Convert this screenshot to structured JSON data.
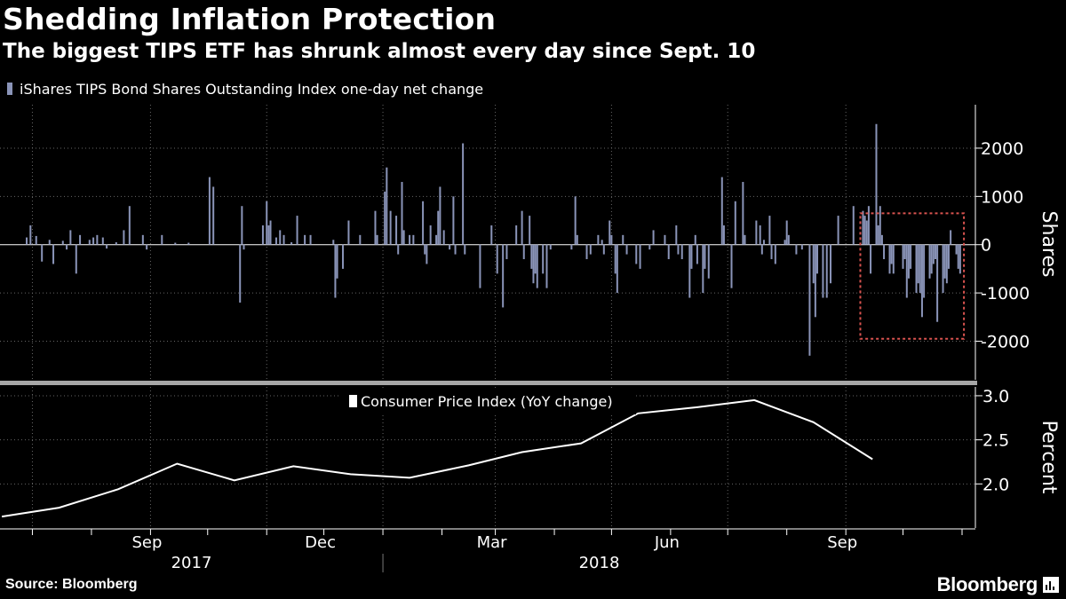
{
  "header": {
    "title": "Shedding Inflation Protection",
    "subtitle": "The biggest TIPS ETF has shrunk almost every day since Sept. 10"
  },
  "footer": {
    "source": "Source: Bloomberg",
    "brand": "Bloomberg"
  },
  "colors": {
    "background": "#000000",
    "bars": "#8a94b8",
    "cpi_line": "#ffffff",
    "highlight_box": "#d9534f",
    "grid": "#666666"
  },
  "chart_data": [
    {
      "type": "bar",
      "legend": "iShares TIPS Bond Shares Outstanding Index one-day net change",
      "legend_placement": "top-left",
      "ylabel": "Shares",
      "yticks": [
        2000,
        1000,
        0,
        -1000,
        -2000
      ],
      "ytick_labels": [
        "2000",
        "1000",
        "0",
        "-1000",
        "-2000"
      ],
      "ylim": [
        -2800,
        2900
      ],
      "grid": true,
      "highlight": {
        "from": "2018-09-10",
        "to": "2018-10-12",
        "ymin": -1950,
        "ymax": 650
      },
      "series": [
        {
          "values": [
            [
              "2017-06-28",
              150
            ],
            [
              "2017-06-30",
              400
            ],
            [
              "2017-07-03",
              180
            ],
            [
              "2017-07-06",
              -350
            ],
            [
              "2017-07-10",
              100
            ],
            [
              "2017-07-12",
              -400
            ],
            [
              "2017-07-17",
              80
            ],
            [
              "2017-07-19",
              -100
            ],
            [
              "2017-07-21",
              300
            ],
            [
              "2017-07-24",
              -600
            ],
            [
              "2017-07-26",
              200
            ],
            [
              "2017-07-31",
              100
            ],
            [
              "2017-08-02",
              150
            ],
            [
              "2017-08-04",
              200
            ],
            [
              "2017-08-07",
              150
            ],
            [
              "2017-08-09",
              -80
            ],
            [
              "2017-08-14",
              50
            ],
            [
              "2017-08-18",
              300
            ],
            [
              "2017-08-21",
              800
            ],
            [
              "2017-08-28",
              200
            ],
            [
              "2017-08-30",
              -100
            ],
            [
              "2017-09-07",
              200
            ],
            [
              "2017-09-14",
              40
            ],
            [
              "2017-09-21",
              40
            ],
            [
              "2017-10-02",
              1400
            ],
            [
              "2017-10-04",
              1200
            ],
            [
              "2017-10-18",
              -1200
            ],
            [
              "2017-10-19",
              800
            ],
            [
              "2017-10-20",
              -100
            ],
            [
              "2017-10-30",
              400
            ],
            [
              "2017-11-01",
              900
            ],
            [
              "2017-11-02",
              400
            ],
            [
              "2017-11-03",
              500
            ],
            [
              "2017-11-06",
              150
            ],
            [
              "2017-11-08",
              300
            ],
            [
              "2017-11-10",
              200
            ],
            [
              "2017-11-14",
              50
            ],
            [
              "2017-11-17",
              600
            ],
            [
              "2017-11-21",
              200
            ],
            [
              "2017-11-24",
              200
            ],
            [
              "2017-12-06",
              100
            ],
            [
              "2017-12-07",
              -1100
            ],
            [
              "2017-12-08",
              -700
            ],
            [
              "2017-12-11",
              -500
            ],
            [
              "2017-12-14",
              500
            ],
            [
              "2017-12-20",
              200
            ],
            [
              "2017-12-28",
              700
            ],
            [
              "2017-12-29",
              200
            ],
            [
              "2018-01-02",
              1100
            ],
            [
              "2018-01-03",
              1600
            ],
            [
              "2018-01-05",
              700
            ],
            [
              "2018-01-08",
              600
            ],
            [
              "2018-01-09",
              -200
            ],
            [
              "2018-01-11",
              1300
            ],
            [
              "2018-01-12",
              300
            ],
            [
              "2018-01-15",
              200
            ],
            [
              "2018-01-17",
              200
            ],
            [
              "2018-01-22",
              900
            ],
            [
              "2018-01-23",
              -200
            ],
            [
              "2018-01-24",
              -400
            ],
            [
              "2018-01-26",
              400
            ],
            [
              "2018-01-29",
              200
            ],
            [
              "2018-01-30",
              700
            ],
            [
              "2018-01-31",
              1200
            ],
            [
              "2018-02-02",
              300
            ],
            [
              "2018-02-05",
              -100
            ],
            [
              "2018-02-07",
              1000
            ],
            [
              "2018-02-08",
              -200
            ],
            [
              "2018-02-12",
              2100
            ],
            [
              "2018-02-13",
              -200
            ],
            [
              "2018-02-21",
              -900
            ],
            [
              "2018-02-27",
              400
            ],
            [
              "2018-03-02",
              -600
            ],
            [
              "2018-03-05",
              -1300
            ],
            [
              "2018-03-07",
              -300
            ],
            [
              "2018-03-12",
              400
            ],
            [
              "2018-03-15",
              700
            ],
            [
              "2018-03-16",
              -300
            ],
            [
              "2018-03-19",
              600
            ],
            [
              "2018-03-20",
              -500
            ],
            [
              "2018-03-21",
              -800
            ],
            [
              "2018-03-22",
              -600
            ],
            [
              "2018-03-23",
              -900
            ],
            [
              "2018-03-26",
              -600
            ],
            [
              "2018-03-28",
              -900
            ],
            [
              "2018-03-30",
              -100
            ],
            [
              "2018-04-10",
              -100
            ],
            [
              "2018-04-12",
              1000
            ],
            [
              "2018-04-13",
              200
            ],
            [
              "2018-04-18",
              -300
            ],
            [
              "2018-04-20",
              -200
            ],
            [
              "2018-04-24",
              200
            ],
            [
              "2018-04-26",
              100
            ],
            [
              "2018-04-27",
              -200
            ],
            [
              "2018-04-30",
              500
            ],
            [
              "2018-05-01",
              200
            ],
            [
              "2018-05-03",
              -600
            ],
            [
              "2018-05-04",
              -1000
            ],
            [
              "2018-05-07",
              200
            ],
            [
              "2018-05-09",
              -200
            ],
            [
              "2018-05-14",
              -400
            ],
            [
              "2018-05-16",
              -500
            ],
            [
              "2018-05-21",
              -100
            ],
            [
              "2018-05-23",
              300
            ],
            [
              "2018-05-29",
              200
            ],
            [
              "2018-05-31",
              -300
            ],
            [
              "2018-06-04",
              400
            ],
            [
              "2018-06-05",
              -200
            ],
            [
              "2018-06-07",
              -300
            ],
            [
              "2018-06-11",
              -1100
            ],
            [
              "2018-06-12",
              -500
            ],
            [
              "2018-06-14",
              200
            ],
            [
              "2018-06-15",
              -400
            ],
            [
              "2018-06-18",
              -1000
            ],
            [
              "2018-06-19",
              -500
            ],
            [
              "2018-06-21",
              -700
            ],
            [
              "2018-06-28",
              1400
            ],
            [
              "2018-06-29",
              400
            ],
            [
              "2018-07-03",
              -900
            ],
            [
              "2018-07-05",
              900
            ],
            [
              "2018-07-09",
              1300
            ],
            [
              "2018-07-10",
              200
            ],
            [
              "2018-07-16",
              500
            ],
            [
              "2018-07-18",
              400
            ],
            [
              "2018-07-19",
              -200
            ],
            [
              "2018-07-20",
              100
            ],
            [
              "2018-07-23",
              600
            ],
            [
              "2018-07-24",
              -300
            ],
            [
              "2018-07-26",
              -400
            ],
            [
              "2018-07-31",
              100
            ],
            [
              "2018-08-01",
              500
            ],
            [
              "2018-08-02",
              200
            ],
            [
              "2018-08-06",
              -200
            ],
            [
              "2018-08-09",
              -100
            ],
            [
              "2018-08-13",
              -2300
            ],
            [
              "2018-08-15",
              -800
            ],
            [
              "2018-08-16",
              -1500
            ],
            [
              "2018-08-17",
              -600
            ],
            [
              "2018-08-20",
              -1100
            ],
            [
              "2018-08-22",
              -1100
            ],
            [
              "2018-08-24",
              -800
            ],
            [
              "2018-08-28",
              600
            ],
            [
              "2018-09-05",
              800
            ],
            [
              "2018-09-10",
              700
            ],
            [
              "2018-09-11",
              600
            ],
            [
              "2018-09-12",
              500
            ],
            [
              "2018-09-13",
              800
            ],
            [
              "2018-09-14",
              -600
            ],
            [
              "2018-09-17",
              2500
            ],
            [
              "2018-09-18",
              400
            ],
            [
              "2018-09-19",
              800
            ],
            [
              "2018-09-20",
              200
            ],
            [
              "2018-09-21",
              -300
            ],
            [
              "2018-09-24",
              -600
            ],
            [
              "2018-09-25",
              -400
            ],
            [
              "2018-09-26",
              -600
            ],
            [
              "2018-10-01",
              -500
            ],
            [
              "2018-10-02",
              -300
            ],
            [
              "2018-10-03",
              -1100
            ],
            [
              "2018-10-04",
              -700
            ],
            [
              "2018-10-05",
              -500
            ],
            [
              "2018-10-08",
              -1000
            ],
            [
              "2018-10-09",
              -800
            ],
            [
              "2018-10-10",
              -1000
            ],
            [
              "2018-10-11",
              -1500
            ],
            [
              "2018-10-12",
              -1100
            ],
            [
              "2018-10-15",
              -700
            ],
            [
              "2018-10-16",
              -600
            ],
            [
              "2018-10-17",
              -400
            ],
            [
              "2018-10-18",
              -300
            ],
            [
              "2018-10-19",
              -1600
            ],
            [
              "2018-10-22",
              -1000
            ],
            [
              "2018-10-23",
              -700
            ],
            [
              "2018-10-24",
              -800
            ],
            [
              "2018-10-25",
              -500
            ],
            [
              "2018-10-26",
              300
            ],
            [
              "2018-10-29",
              -200
            ],
            [
              "2018-10-30",
              -500
            ],
            [
              "2018-10-31",
              -600
            ]
          ]
        }
      ]
    },
    {
      "type": "line",
      "legend": "Consumer Price Index (YoY change)",
      "legend_placement": "top-center",
      "ylabel": "Percent",
      "yticks": [
        3.0,
        2.5,
        2.0
      ],
      "ytick_labels": [
        "3.0",
        "2.5",
        "2.0"
      ],
      "ylim": [
        1.5,
        3.1
      ],
      "grid": true,
      "series": [
        {
          "values": [
            [
              "2017-06-15",
              1.63
            ],
            [
              "2017-07-15",
              1.73
            ],
            [
              "2017-08-15",
              1.94
            ],
            [
              "2017-09-15",
              2.23
            ],
            [
              "2017-10-15",
              2.04
            ],
            [
              "2017-11-15",
              2.2
            ],
            [
              "2017-12-15",
              2.11
            ],
            [
              "2018-01-15",
              2.07
            ],
            [
              "2018-02-15",
              2.21
            ],
            [
              "2018-03-15",
              2.36
            ],
            [
              "2018-04-15",
              2.46
            ],
            [
              "2018-05-15",
              2.8
            ],
            [
              "2018-06-15",
              2.87
            ],
            [
              "2018-07-15",
              2.95
            ],
            [
              "2018-08-15",
              2.7
            ],
            [
              "2018-09-15",
              2.28
            ]
          ]
        }
      ]
    }
  ],
  "x_axis": {
    "month_ticks": [
      {
        "date": "2017-09-01",
        "label": "Sep"
      },
      {
        "date": "2017-12-01",
        "label": "Dec"
      },
      {
        "date": "2018-03-01",
        "label": "Mar"
      },
      {
        "date": "2018-06-01",
        "label": "Jun"
      },
      {
        "date": "2018-09-01",
        "label": "Sep"
      }
    ],
    "year_labels": [
      {
        "label": "2017"
      },
      {
        "label": "2018"
      }
    ]
  }
}
